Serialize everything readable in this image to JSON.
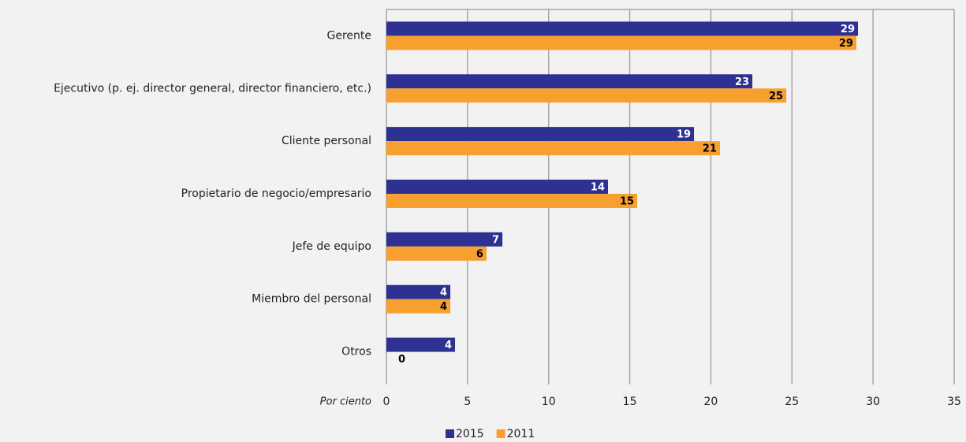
{
  "chart_data": {
    "type": "bar",
    "orientation": "horizontal",
    "categories": [
      "Gerente",
      "Ejecutivo (p. ej. director general, director financiero, etc.)",
      "Cliente personal",
      "Propietario de negocio/empresario",
      "Jefe de equipo",
      "Miembro del personal",
      "Otros"
    ],
    "series": [
      {
        "name": "2015",
        "color": "#2e3192",
        "values": [
          29.07,
          22.56,
          18.96,
          13.66,
          7.15,
          3.94,
          4.23
        ],
        "value_labels": [
          "29",
          "23",
          "19",
          "14",
          "7",
          "4",
          "4"
        ]
      },
      {
        "name": "2011",
        "color": "#f7a030",
        "values": [
          28.97,
          24.65,
          20.56,
          15.46,
          6.17,
          3.94,
          0
        ],
        "value_labels": [
          "29",
          "25",
          "21",
          "15",
          "6",
          "4",
          "0"
        ]
      }
    ],
    "xlabel": "Por ciento",
    "xlim": [
      0,
      35
    ],
    "xticks": [
      0,
      5,
      10,
      15,
      20,
      25,
      30,
      35
    ],
    "grid": true,
    "legend": "bottom"
  }
}
